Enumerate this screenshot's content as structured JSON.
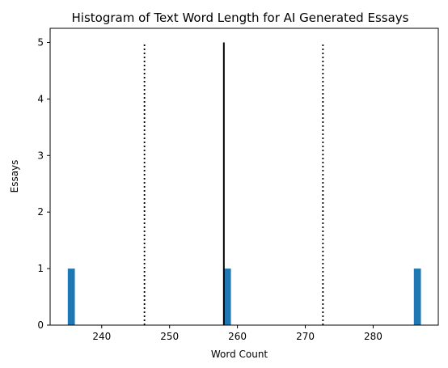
{
  "chart_data": {
    "type": "bar",
    "title": "Histogram of Text Word Length for AI Generated Essays",
    "xlabel": "Word Count",
    "ylabel": "Essays",
    "xlim": [
      232.4,
      289.6
    ],
    "ylim": [
      0,
      5.25
    ],
    "x_ticks": [
      240,
      250,
      260,
      270,
      280
    ],
    "y_ticks": [
      0,
      1,
      2,
      3,
      4,
      5
    ],
    "bin_width": 1.04,
    "bars": [
      {
        "x_start": 235.0,
        "x_end": 236.04,
        "value": 1
      },
      {
        "x_start": 258.0,
        "x_end": 259.04,
        "value": 1
      },
      {
        "x_start": 286.0,
        "x_end": 287.04,
        "value": 1
      }
    ],
    "reference_lines": [
      {
        "x": 258.0,
        "y_max": 5,
        "style": "solid"
      },
      {
        "x": 246.3,
        "y_max": 5,
        "style": "dotted"
      },
      {
        "x": 272.6,
        "y_max": 5,
        "style": "dotted"
      }
    ],
    "grid": false,
    "colors": {
      "bar": "#1f77b4",
      "lines": "#000000"
    }
  }
}
